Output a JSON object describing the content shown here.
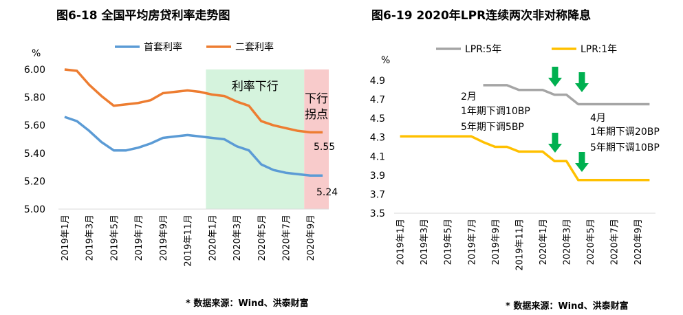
{
  "left_chart": {
    "title": "图6-18  全国平均房贷利率走势图",
    "source": "* 数据来源：Wind、洪泰财富",
    "ylabel": "%",
    "chart_data": {
      "type": "line",
      "title": "图6-18  全国平均房贷利率走势图",
      "ylabel": "%",
      "ylim": [
        5.0,
        6.0
      ],
      "yticks": [
        "5.00",
        "5.20",
        "5.40",
        "5.60",
        "5.80",
        "6.00"
      ],
      "x": [
        "2019年1月",
        "2019年2月",
        "2019年3月",
        "2019年4月",
        "2019年5月",
        "2019年6月",
        "2019年7月",
        "2019年8月",
        "2019年9月",
        "2019年10月",
        "2019年11月",
        "2019年12月",
        "2020年1月",
        "2020年2月",
        "2020年3月",
        "2020年4月",
        "2020年5月",
        "2020年6月",
        "2020年7月",
        "2020年8月",
        "2020年9月",
        "2020年10月"
      ],
      "xtick_labels": [
        "2019年1月",
        "2019年3月",
        "2019年5月",
        "2019年7月",
        "2019年9月",
        "2019年11月",
        "2020年1月",
        "2020年3月",
        "2020年5月",
        "2020年7月",
        "2020年9月"
      ],
      "series": [
        {
          "name": "首套利率",
          "color": "#5b9bd5",
          "values": [
            5.66,
            5.63,
            5.56,
            5.48,
            5.42,
            5.42,
            5.44,
            5.47,
            5.51,
            5.52,
            5.53,
            5.52,
            5.51,
            5.5,
            5.45,
            5.42,
            5.32,
            5.28,
            5.26,
            5.25,
            5.24,
            5.24
          ]
        },
        {
          "name": "二套利率",
          "color": "#ed7d31",
          "values": [
            6.0,
            5.99,
            5.89,
            5.81,
            5.74,
            5.75,
            5.76,
            5.78,
            5.83,
            5.84,
            5.85,
            5.84,
            5.82,
            5.81,
            5.77,
            5.74,
            5.63,
            5.6,
            5.58,
            5.56,
            5.55,
            5.55
          ]
        }
      ],
      "regions": [
        {
          "label": "利率下行",
          "start": "2020年1月",
          "end": "2020年8月",
          "color": "#d5f3dd"
        },
        {
          "label_line1": "下行",
          "label_line2": "拐点",
          "start": "2020年9月",
          "end": "2020年10月",
          "color": "#f8cbcb"
        }
      ],
      "end_labels": [
        "5.55",
        "5.24"
      ],
      "legend": "top"
    }
  },
  "right_chart": {
    "title": "图6-19   2020年LPR连续两次非对称降息",
    "source": "* 数据来源：Wind、洪泰财富",
    "ylabel": "%",
    "chart_data": {
      "type": "line",
      "title": "图6-19   2020年LPR连续两次非对称降息",
      "ylabel": "%",
      "ylim": [
        3.5,
        4.9
      ],
      "yticks": [
        "3.5",
        "3.7",
        "3.9",
        "4.1",
        "4.3",
        "4.5",
        "4.7",
        "4.9"
      ],
      "x": [
        "2019年1月",
        "2019年2月",
        "2019年3月",
        "2019年4月",
        "2019年5月",
        "2019年6月",
        "2019年7月",
        "2019年8月",
        "2019年9月",
        "2019年10月",
        "2019年11月",
        "2019年12月",
        "2020年1月",
        "2020年2月",
        "2020年3月",
        "2020年4月",
        "2020年5月",
        "2020年6月",
        "2020年7月",
        "2020年8月",
        "2020年9月",
        "2020年10月"
      ],
      "xtick_labels": [
        "2019年1月",
        "2019年3月",
        "2019年5月",
        "2019年7月",
        "2019年9月",
        "2019年11月",
        "2020年1月",
        "2020年3月",
        "2020年5月",
        "2020年7月",
        "2020年9月"
      ],
      "series": [
        {
          "name": "LPR:5年",
          "color": "#a5a5a5",
          "values": [
            null,
            null,
            null,
            null,
            null,
            null,
            null,
            4.85,
            4.85,
            4.85,
            4.8,
            4.8,
            4.8,
            4.75,
            4.75,
            4.65,
            4.65,
            4.65,
            4.65,
            4.65,
            4.65,
            4.65
          ]
        },
        {
          "name": "LPR:1年",
          "color": "#ffc000",
          "values": [
            4.31,
            4.31,
            4.31,
            4.31,
            4.31,
            4.31,
            4.31,
            4.25,
            4.2,
            4.2,
            4.15,
            4.15,
            4.15,
            4.05,
            4.05,
            3.85,
            3.85,
            3.85,
            3.85,
            3.85,
            3.85,
            3.85
          ]
        }
      ],
      "annotations": [
        {
          "line1": "2月",
          "line2": "1年期下调10BP",
          "line3": "5年期下调5BP"
        },
        {
          "line1": "4月",
          "line2": "1年期下调20BP",
          "line3": "5年期下调10BP"
        }
      ],
      "arrow_markers_at": [
        "2020年2月",
        "2020年4月"
      ],
      "arrow_color": "#00b050",
      "legend": "top"
    }
  }
}
